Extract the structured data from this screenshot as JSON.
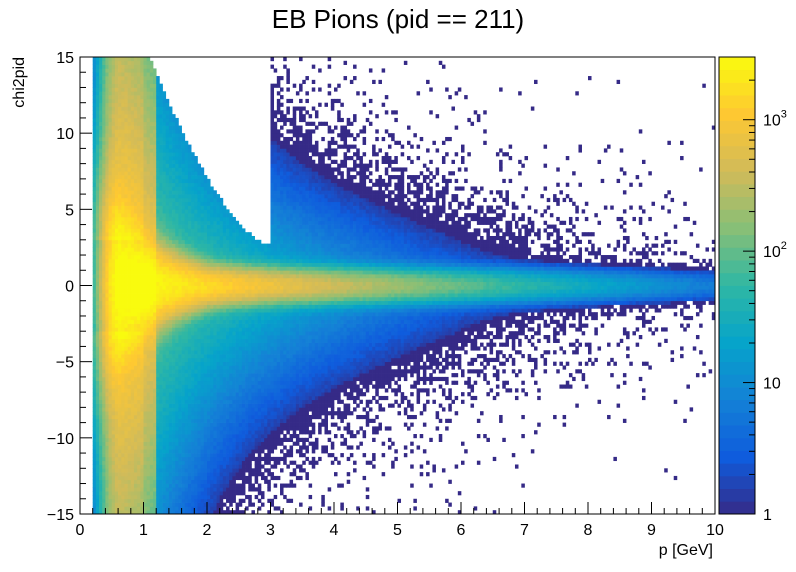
{
  "chart_data": {
    "type": "heatmap",
    "title": "EB Pions (pid == 211)",
    "xlabel": "p [GeV]",
    "ylabel": "chi2pid",
    "xlim": [
      0,
      10
    ],
    "ylim": [
      -15,
      15
    ],
    "x_ticks": [
      "0",
      "1",
      "2",
      "3",
      "4",
      "5",
      "6",
      "7",
      "8",
      "9",
      "10"
    ],
    "y_ticks": [
      "15",
      "10",
      "5",
      "0",
      "−5",
      "−10",
      "−15"
    ],
    "z_scale": "log",
    "z_range": [
      1,
      3000
    ],
    "z_ticks": [
      {
        "value": 1,
        "label": "1"
      },
      {
        "value": 10,
        "label": "10"
      },
      {
        "value": 100,
        "label": "10^2"
      },
      {
        "value": 1000,
        "label": "10^3"
      }
    ],
    "colormap": "viridis-like (ROOT kBird)",
    "colors": [
      "#352a87",
      "#0f5cdd",
      "#1481d6",
      "#06a4ca",
      "#2eb7a4",
      "#87bf77",
      "#d1bb59",
      "#fec832",
      "#f9fb0e"
    ],
    "distribution": {
      "peak": {
        "p": 0.8,
        "chi2pid": 0.0,
        "count_approx": 3000
      },
      "band_core": "horizontal band centred at chi2pid = 0, widest at p ~ 0.5-1 GeV, narrowing toward p ~ 8 GeV",
      "upper_cutoff_region": "no entries above a curved edge for 1.1 < p < 3 GeV (chi2pid upper edge drops from 15 to ~2.7 at p = 3)",
      "hard_edge": "sharp vertical edge at p = 3 GeV above chi2pid ~ 2.7",
      "min_p": 0.18,
      "max_p": 10
    }
  }
}
